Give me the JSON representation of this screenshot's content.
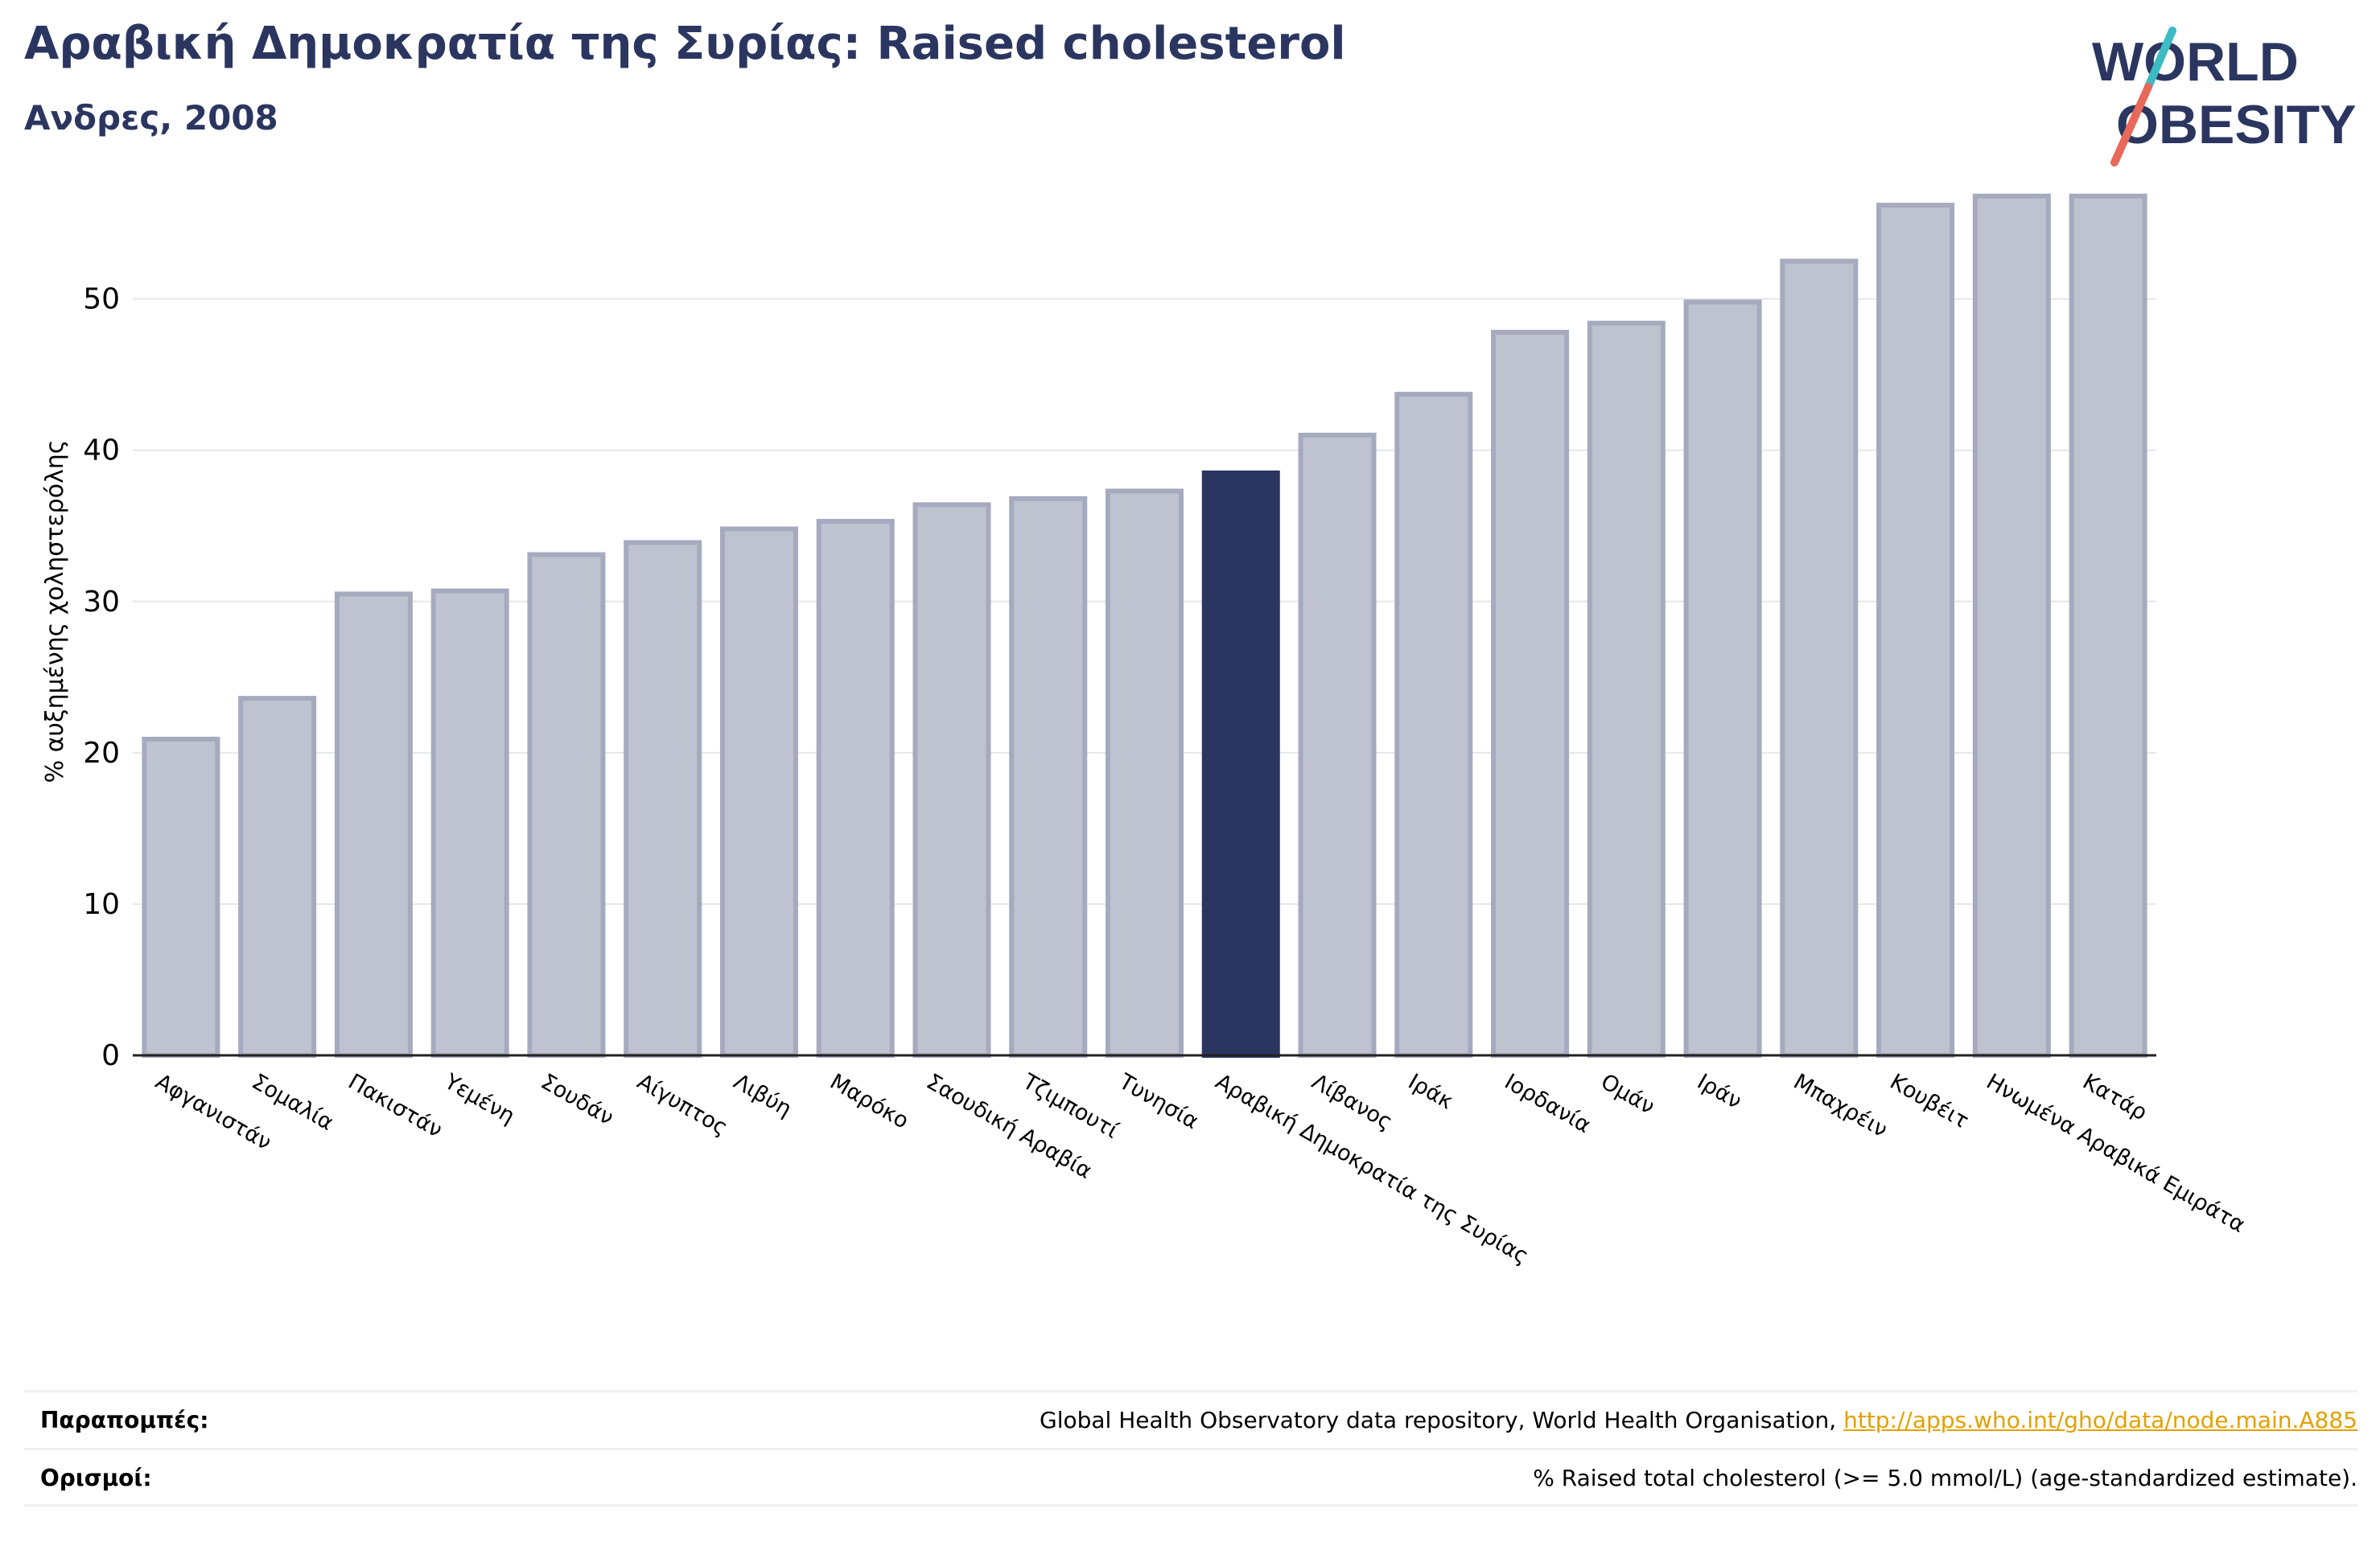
{
  "header": {
    "title": "Αραβική Δημοκρατία της Συρίας: Raised cholesterol",
    "subtitle": "Ανδρες, 2008"
  },
  "logo": {
    "line1": "WORLD",
    "line2": "OBESITY",
    "colors": {
      "text": "#2b3660",
      "slash_top": "#3cbcc3",
      "slash_bottom": "#e8685a"
    }
  },
  "chart_data": {
    "type": "bar",
    "ylabel": "% αυξημένης χοληστερόλης",
    "xlabel": "",
    "ylim": [
      0,
      57
    ],
    "yticks": [
      0,
      10,
      20,
      30,
      40,
      50
    ],
    "grid": true,
    "categories": [
      "Αφγανιστάν",
      "Σομαλία",
      "Πακιστάν",
      "Υεμένη",
      "Σουδάν",
      "Αίγυπτος",
      "Λιβύη",
      "Μαρόκο",
      "Σαουδική Αραβία",
      "Τζιμπουτί",
      "Τυνησία",
      "Αραβική Δημοκρατία της Συρίας",
      "Λίβανος",
      "Ιράκ",
      "Ιορδανία",
      "Ομάν",
      "Ιράν",
      "Μπαχρέιν",
      "Κουβέιτ",
      "Ηνωμένα Αραβικά Εμιράτα",
      "Κατάρ"
    ],
    "values": [
      20.9,
      23.6,
      30.5,
      30.7,
      33.1,
      33.9,
      34.8,
      35.3,
      36.4,
      36.8,
      37.3,
      38.5,
      41.0,
      43.7,
      47.8,
      48.4,
      49.8,
      52.5,
      56.2,
      56.8,
      56.8
    ],
    "highlight": "Αραβική Δημοκρατία της Συρίας",
    "colors": {
      "bar": "#bfc2cf",
      "bar_border": "#a6aabf",
      "highlight": "#2b3660"
    }
  },
  "footer": {
    "references_label": "Παραπομπές:",
    "references_text": "Global Health Observatory data repository, World Health Organisation,",
    "references_link": "http://apps.who.int/gho/data/node.main.A885",
    "definitions_label": "Ορισμοί:",
    "definitions_text": "% Raised total cholesterol (>= 5.0 mmol/L) (age-standardized estimate)."
  }
}
